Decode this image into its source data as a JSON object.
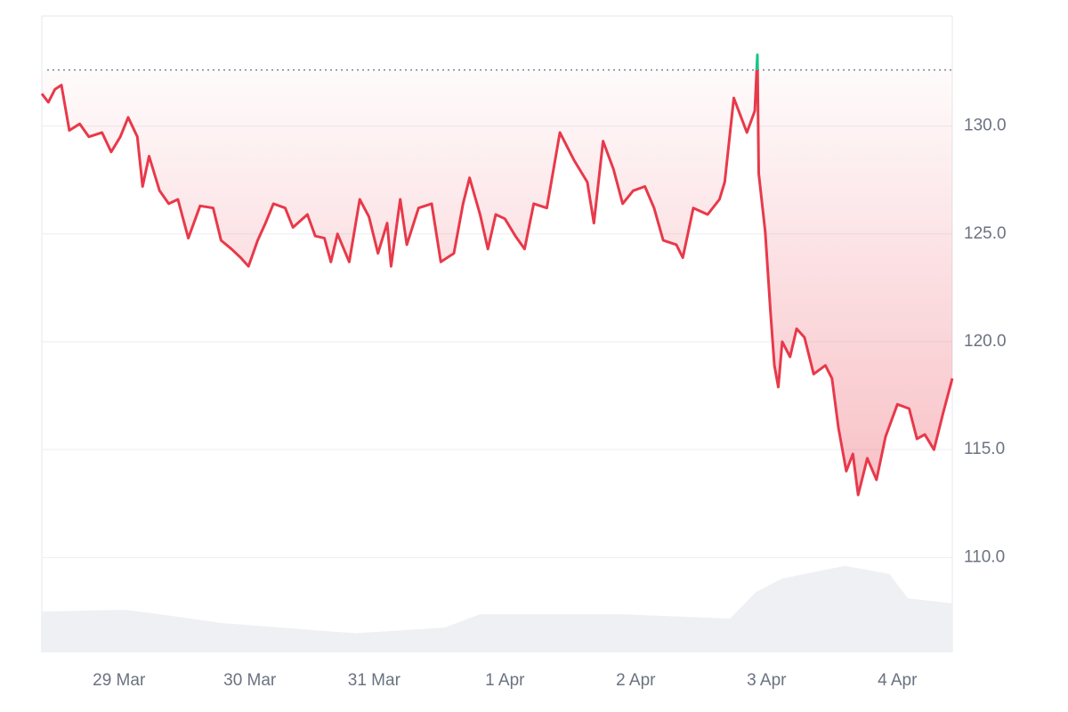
{
  "chart_data": {
    "type": "line",
    "x": [
      -0.59,
      -0.54,
      -0.49,
      -0.44,
      -0.38,
      -0.3,
      -0.23,
      -0.13,
      -0.06,
      0.01,
      0.07,
      0.14,
      0.18,
      0.23,
      0.31,
      0.38,
      0.45,
      0.53,
      0.62,
      0.72,
      0.78,
      0.86,
      0.93,
      0.99,
      1.06,
      1.12,
      1.18,
      1.27,
      1.33,
      1.44,
      1.5,
      1.57,
      1.62,
      1.67,
      1.76,
      1.84,
      1.91,
      1.98,
      2.05,
      2.08,
      2.15,
      2.2,
      2.29,
      2.39,
      2.46,
      2.56,
      2.63,
      2.68,
      2.76,
      2.82,
      2.88,
      2.95,
      3.03,
      3.1,
      3.17,
      3.27,
      3.37,
      3.48,
      3.58,
      3.63,
      3.7,
      3.78,
      3.85,
      3.93,
      4.02,
      4.09,
      4.16,
      4.26,
      4.31,
      4.39,
      4.5,
      4.59,
      4.63,
      4.7,
      4.8,
      4.86,
      4.88,
      4.89,
      4.94,
      4.98,
      5.01,
      5.04,
      5.07,
      5.13,
      5.18,
      5.24,
      5.31,
      5.4,
      5.45,
      5.5,
      5.56,
      5.61,
      5.65,
      5.72,
      5.79,
      5.86,
      5.95,
      6.04,
      6.1,
      6.16,
      6.23,
      6.3,
      6.37
    ],
    "series": [
      {
        "color": "#e8394a",
        "above_color": "#16c784",
        "values": [
          131.5,
          131.1,
          131.7,
          131.9,
          129.8,
          130.1,
          129.5,
          129.7,
          128.8,
          129.5,
          130.4,
          129.5,
          127.2,
          128.6,
          127.0,
          126.4,
          126.6,
          124.8,
          126.3,
          126.2,
          124.7,
          124.3,
          123.9,
          123.5,
          124.7,
          125.5,
          126.4,
          126.2,
          125.3,
          125.9,
          124.9,
          124.8,
          123.7,
          125.0,
          123.7,
          126.6,
          125.8,
          124.1,
          125.5,
          123.5,
          126.6,
          124.5,
          126.2,
          126.4,
          123.7,
          124.1,
          126.4,
          127.6,
          125.9,
          124.3,
          125.9,
          125.7,
          124.9,
          124.3,
          126.4,
          126.2,
          129.7,
          128.4,
          127.4,
          125.5,
          129.3,
          128.0,
          126.4,
          127.0,
          127.2,
          126.2,
          124.7,
          124.5,
          123.9,
          126.2,
          125.9,
          126.6,
          127.4,
          131.3,
          129.7,
          130.7,
          133.3,
          127.8,
          125.1,
          121.4,
          118.9,
          117.9,
          120.0,
          119.3,
          120.6,
          120.2,
          118.5,
          118.9,
          118.3,
          116.0,
          114.0,
          114.8,
          112.9,
          114.6,
          113.6,
          115.6,
          117.1,
          116.9,
          115.5,
          115.7,
          115.0,
          116.7,
          118.3
        ]
      }
    ],
    "reference_line": 132.6,
    "volume": {
      "color": "#eef0f3",
      "x": [
        -0.59,
        0.04,
        0.31,
        0.79,
        1.81,
        2.49,
        2.76,
        3.85,
        4.67,
        4.87,
        5.07,
        5.55,
        5.89,
        6.03,
        6.37
      ],
      "values": [
        6.4,
        6.7,
        6.0,
        4.6,
        3.0,
        3.9,
        6.0,
        6.0,
        5.3,
        9.5,
        11.6,
        13.6,
        12.3,
        8.5,
        7.7
      ]
    },
    "xlim": [
      -0.59,
      6.37
    ],
    "xticks": [
      {
        "value": 0,
        "label": "29 Mar"
      },
      {
        "value": 1,
        "label": "30 Mar"
      },
      {
        "value": 1.95,
        "label": "31 Mar"
      },
      {
        "value": 2.95,
        "label": "1 Apr"
      },
      {
        "value": 3.95,
        "label": "2 Apr"
      },
      {
        "value": 4.95,
        "label": "3 Apr"
      },
      {
        "value": 5.95,
        "label": "4 Apr"
      }
    ],
    "ylim": [
      105.6,
      135.1
    ],
    "yticks": [
      {
        "value": 110,
        "label": "110.0"
      },
      {
        "value": 115,
        "label": "115.0"
      },
      {
        "value": 120,
        "label": "120.0"
      },
      {
        "value": 125,
        "label": "125.0"
      },
      {
        "value": 130,
        "label": "130.0"
      }
    ],
    "y2lim": [
      0,
      100
    ],
    "grid": true
  }
}
